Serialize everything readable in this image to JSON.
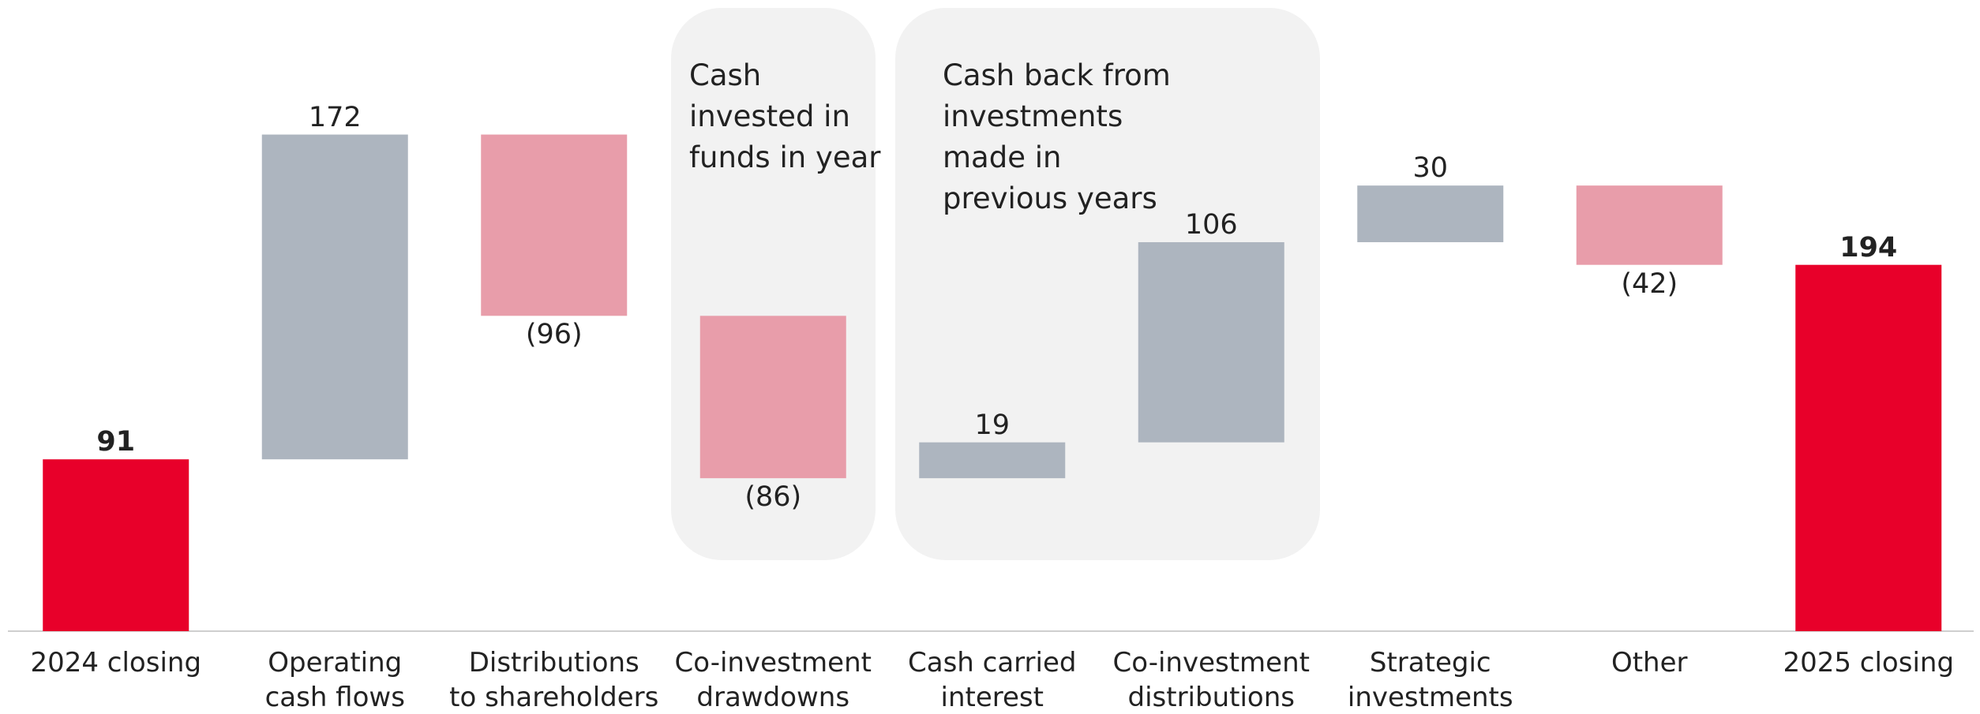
{
  "chart_data": {
    "type": "waterfall",
    "categories": [
      "2024 closing",
      "Operating\ncash flows",
      "Distributions\nto shareholders",
      "Co-investment\ndrawdowns",
      "Cash carried\ninterest",
      "Co-investment\ndistributions",
      "Strategic\ninvestments",
      "Other",
      "2025 closing"
    ],
    "values": [
      91,
      172,
      -96,
      -86,
      19,
      106,
      30,
      -42,
      194
    ],
    "value_labels": [
      "91",
      "172",
      "(96)",
      "(86)",
      "19",
      "106",
      "30",
      "(42)",
      "194"
    ],
    "is_total": [
      true,
      false,
      false,
      false,
      false,
      false,
      false,
      false,
      true
    ],
    "colors": {
      "total": "#e8002a",
      "increase": "#adb5bf",
      "decrease": "#e89daa"
    },
    "ylim": [
      0,
      300
    ],
    "annotations": [
      {
        "text": "Cash\ninvested in\nfunds in year"
      },
      {
        "text": "Cash back from\ninvestments\nmade in\nprevious years"
      }
    ]
  }
}
